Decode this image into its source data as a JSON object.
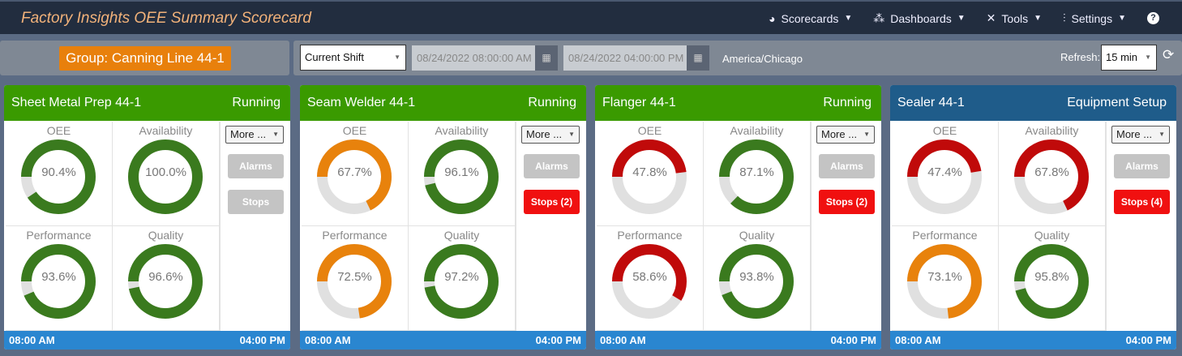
{
  "header": {
    "title": "Factory Insights OEE Summary Scorecard",
    "nav": [
      {
        "label": "Scorecards",
        "icon": "dashboard-icon"
      },
      {
        "label": "Dashboards",
        "icon": "cubes-icon"
      },
      {
        "label": "Tools",
        "icon": "tools-icon"
      },
      {
        "label": "Settings",
        "icon": "sliders-icon"
      }
    ],
    "help_icon": "question-circle-icon"
  },
  "filter": {
    "group": "Group: Canning Line 44-1",
    "range": "Current Shift",
    "start": "08/24/2022 08:00:00 AM",
    "end": "08/24/2022 04:00:00 PM",
    "timezone": "America/Chicago",
    "refresh_label": "Refresh:",
    "refresh_value": "15 min"
  },
  "colors": {
    "green": "#3a7a1e",
    "orange": "#e8820c",
    "red": "#c00a0a",
    "track": "#e0e0e0",
    "running": "#3a9a00",
    "setup": "#1f5c8a",
    "footer": "#2a86d0",
    "stops_active": "#f01010",
    "button_disabled": "#c4c4c4"
  },
  "cards": [
    {
      "name": "Sheet Metal Prep 44-1",
      "status": "Running",
      "status_color": "#3a9a00",
      "more": "More ...",
      "alarms": "Alarms",
      "stops": "Stops",
      "stops_active": false,
      "start": "08:00 AM",
      "end": "04:00 PM",
      "gauges": [
        {
          "label": "OEE",
          "value": 90.4,
          "text": "90.4%",
          "color": "#3a7a1e"
        },
        {
          "label": "Availability",
          "value": 100.0,
          "text": "100.0%",
          "color": "#3a7a1e"
        },
        {
          "label": "Performance",
          "value": 93.6,
          "text": "93.6%",
          "color": "#3a7a1e"
        },
        {
          "label": "Quality",
          "value": 96.6,
          "text": "96.6%",
          "color": "#3a7a1e"
        }
      ]
    },
    {
      "name": "Seam Welder 44-1",
      "status": "Running",
      "status_color": "#3a9a00",
      "more": "More ...",
      "alarms": "Alarms",
      "stops": "Stops (2)",
      "stops_active": true,
      "start": "08:00 AM",
      "end": "04:00 PM",
      "gauges": [
        {
          "label": "OEE",
          "value": 67.7,
          "text": "67.7%",
          "color": "#e8820c"
        },
        {
          "label": "Availability",
          "value": 96.1,
          "text": "96.1%",
          "color": "#3a7a1e"
        },
        {
          "label": "Performance",
          "value": 72.5,
          "text": "72.5%",
          "color": "#e8820c"
        },
        {
          "label": "Quality",
          "value": 97.2,
          "text": "97.2%",
          "color": "#3a7a1e"
        }
      ]
    },
    {
      "name": "Flanger 44-1",
      "status": "Running",
      "status_color": "#3a9a00",
      "more": "More ...",
      "alarms": "Alarms",
      "stops": "Stops (2)",
      "stops_active": true,
      "start": "08:00 AM",
      "end": "04:00 PM",
      "gauges": [
        {
          "label": "OEE",
          "value": 47.8,
          "text": "47.8%",
          "color": "#c00a0a"
        },
        {
          "label": "Availability",
          "value": 87.1,
          "text": "87.1%",
          "color": "#3a7a1e"
        },
        {
          "label": "Performance",
          "value": 58.6,
          "text": "58.6%",
          "color": "#c00a0a"
        },
        {
          "label": "Quality",
          "value": 93.8,
          "text": "93.8%",
          "color": "#3a7a1e"
        }
      ]
    },
    {
      "name": "Sealer 44-1",
      "status": "Equipment Setup",
      "status_color": "#1f5c8a",
      "more": "More ...",
      "alarms": "Alarms",
      "stops": "Stops (4)",
      "stops_active": true,
      "start": "08:00 AM",
      "end": "04:00 PM",
      "gauges": [
        {
          "label": "OEE",
          "value": 47.4,
          "text": "47.4%",
          "color": "#c00a0a"
        },
        {
          "label": "Availability",
          "value": 67.8,
          "text": "67.8%",
          "color": "#c00a0a"
        },
        {
          "label": "Performance",
          "value": 73.1,
          "text": "73.1%",
          "color": "#e8820c"
        },
        {
          "label": "Quality",
          "value": 95.8,
          "text": "95.8%",
          "color": "#3a7a1e"
        }
      ]
    }
  ]
}
